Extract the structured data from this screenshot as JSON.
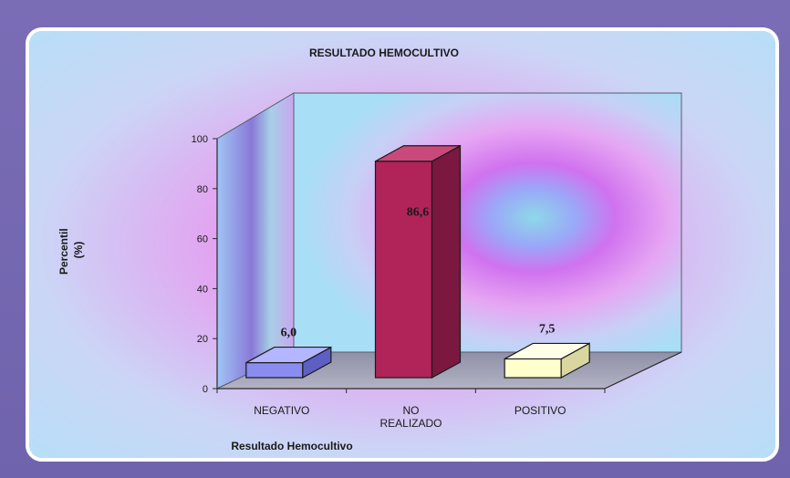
{
  "chart_data": {
    "type": "bar",
    "title": "RESULTADO HEMOCULTIVO",
    "xlabel": "Resultado Hemocultivo",
    "ylabel": "Percentil (%)",
    "ylabel_lines": [
      "Percentil",
      "(%)"
    ],
    "categories": [
      "NEGATIVO",
      "NO REALIZADO",
      "POSITIVO"
    ],
    "category_lines": [
      [
        "NEGATIVO"
      ],
      [
        "NO",
        "REALIZADO"
      ],
      [
        "POSITIVO"
      ]
    ],
    "values": [
      6.0,
      86.6,
      7.5
    ],
    "value_labels": [
      "6,0",
      "86,6",
      "7,5"
    ],
    "ylim": [
      0,
      100
    ],
    "yticks": [
      0,
      20,
      40,
      60,
      80,
      100
    ],
    "grid": false,
    "legend": "none",
    "bar_colors": [
      "#8a8cf0",
      "#b0245a",
      "#ffffcc"
    ],
    "bar_side_colors": [
      "#5d5fc4",
      "#7a1840",
      "#d9d6a0"
    ],
    "bar_top_colors": [
      "#b4b6ff",
      "#c94a7a",
      "#ffffe8"
    ]
  }
}
